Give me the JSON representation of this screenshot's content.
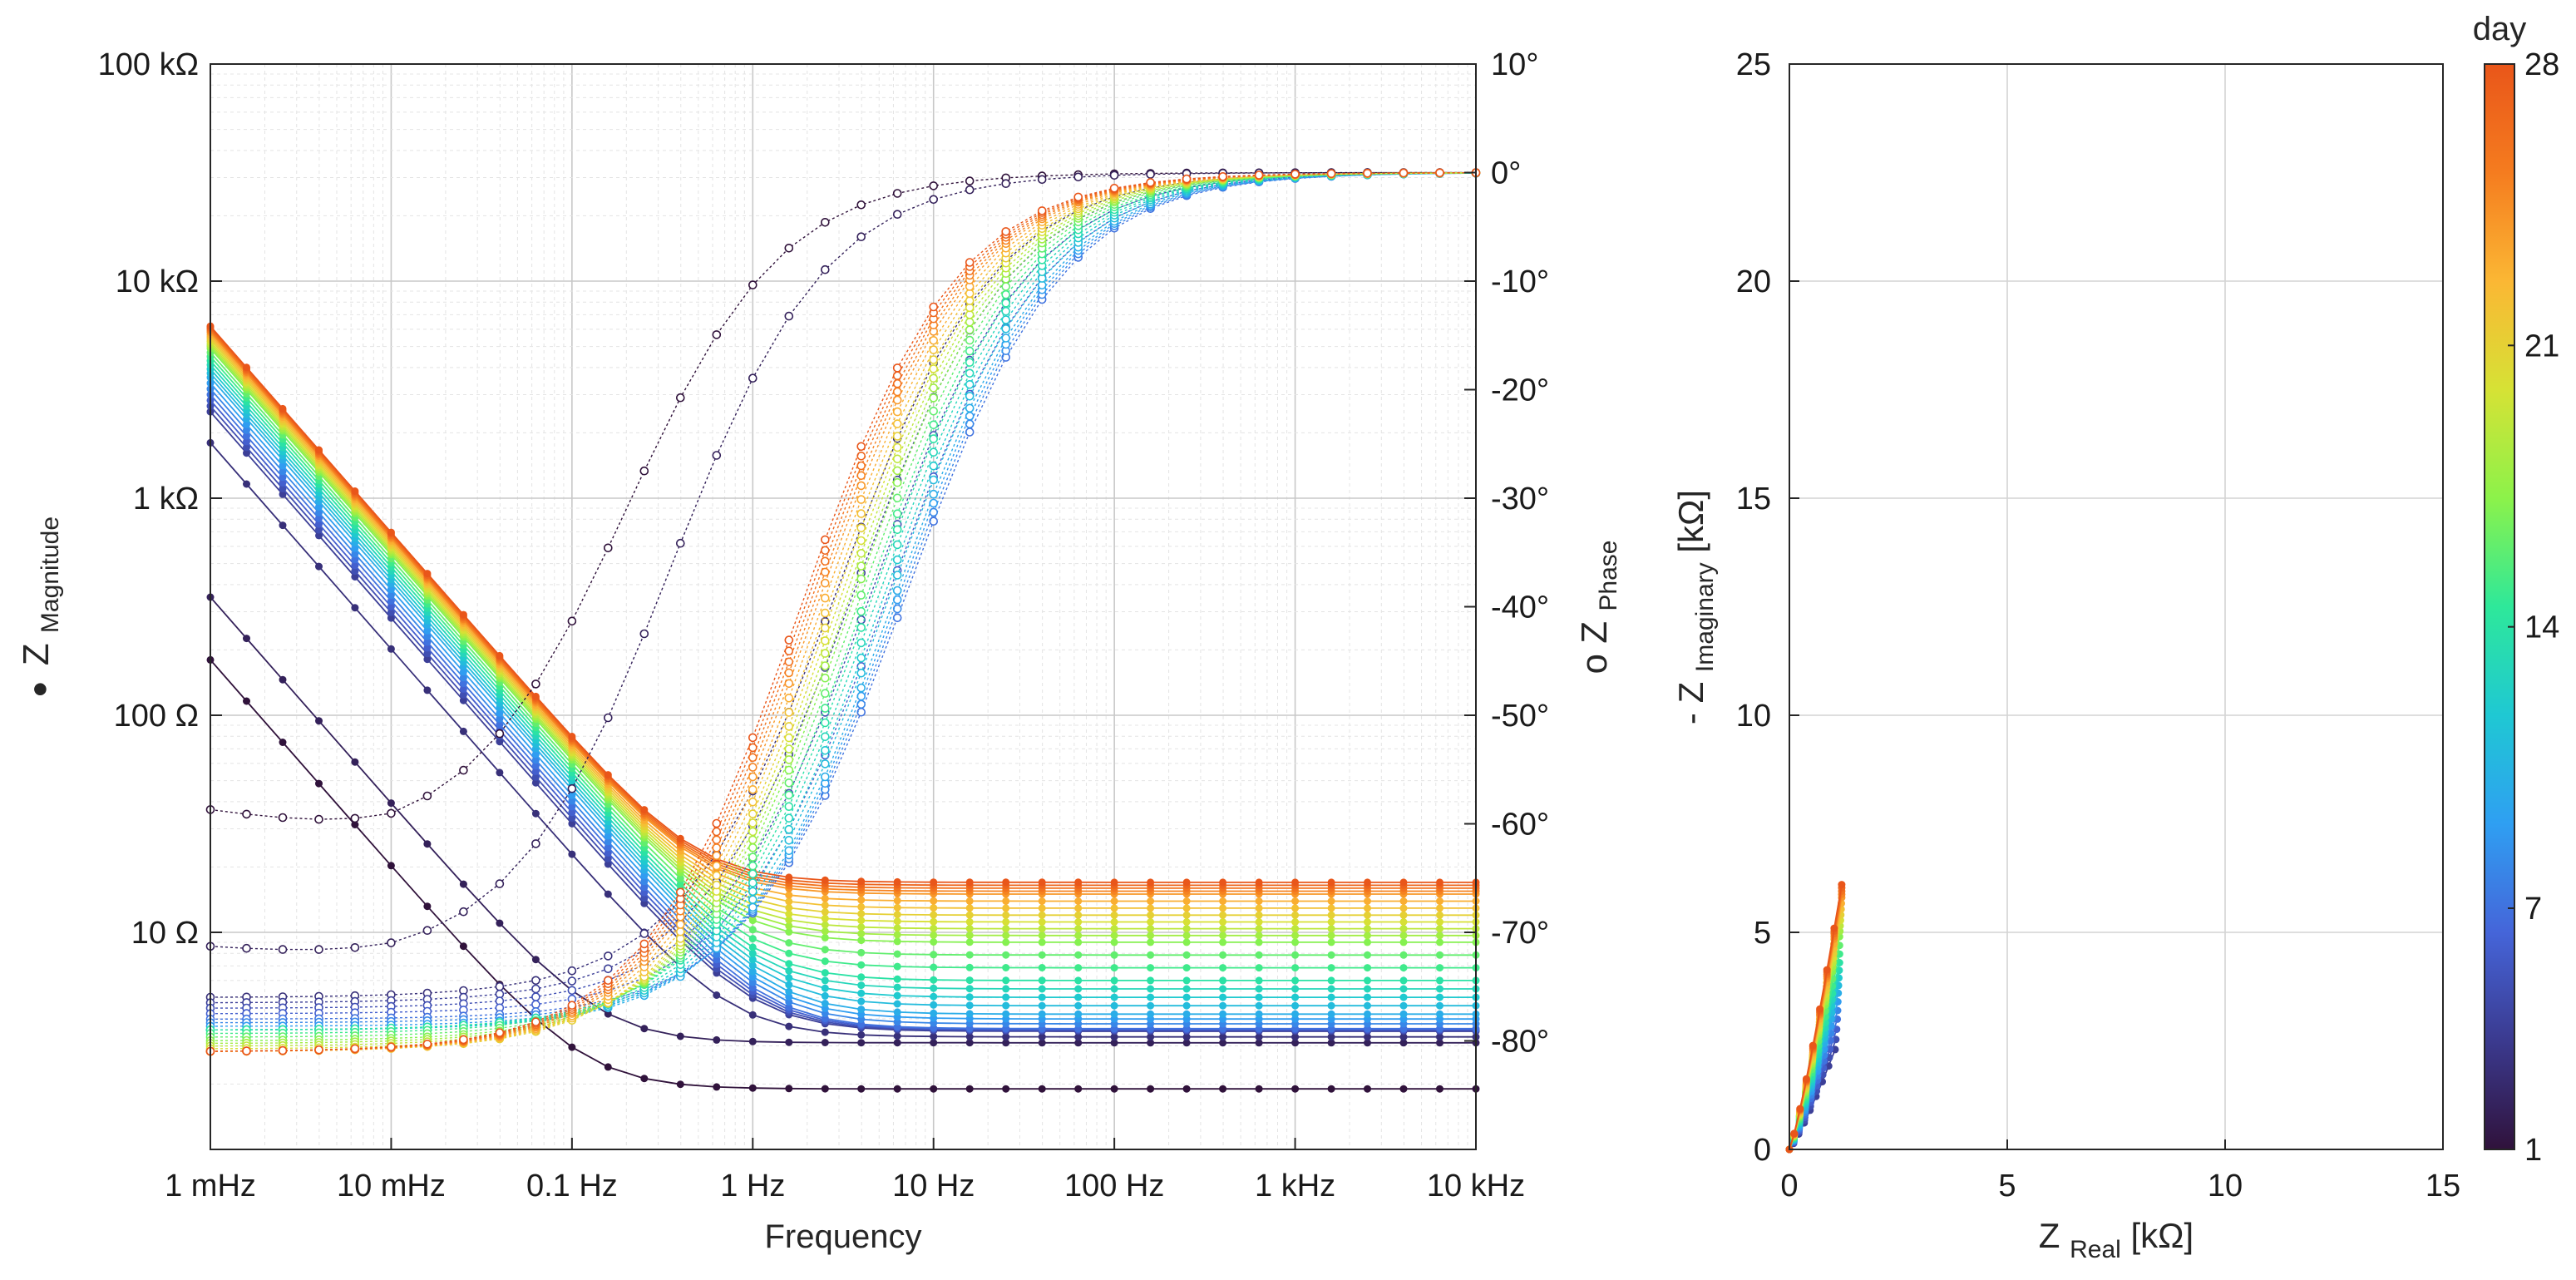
{
  "chart_data": [
    {
      "type": "line",
      "title": "",
      "xlabel": "Frequency",
      "ylabel_left": "Z",
      "ylabel_left_sub": "Magnitude",
      "ylabel_left_marker": "●",
      "ylabel_right": "o Z",
      "ylabel_right_sub": "Phase",
      "x_scale": "log",
      "xlim_hz": [
        0.001,
        10000
      ],
      "x_ticks": [
        {
          "value": 0.001,
          "label": "1 mHz"
        },
        {
          "value": 0.01,
          "label": "10 mHz"
        },
        {
          "value": 0.1,
          "label": "0.1 Hz"
        },
        {
          "value": 1,
          "label": "1 Hz"
        },
        {
          "value": 10,
          "label": "10 Hz"
        },
        {
          "value": 100,
          "label": "100 Hz"
        },
        {
          "value": 1000,
          "label": "1 kHz"
        },
        {
          "value": 10000,
          "label": "10 kHz"
        }
      ],
      "y_left_scale": "log",
      "ylim_left_ohm": [
        1,
        100000
      ],
      "y_left_ticks": [
        {
          "value": 10,
          "label": "10 Ω"
        },
        {
          "value": 100,
          "label": "100 Ω"
        },
        {
          "value": 1000,
          "label": "1 kΩ"
        },
        {
          "value": 10000,
          "label": "10 kΩ"
        },
        {
          "value": 100000,
          "label": "100 kΩ"
        }
      ],
      "ylim_right_deg": [
        -90,
        10
      ],
      "y_right_ticks": [
        {
          "value": 10,
          "label": "10°"
        },
        {
          "value": 0,
          "label": "0°"
        },
        {
          "value": -10,
          "label": "-10°"
        },
        {
          "value": -20,
          "label": "-20°"
        },
        {
          "value": -30,
          "label": "-30°"
        },
        {
          "value": -40,
          "label": "-40°"
        },
        {
          "value": -50,
          "label": "-50°"
        },
        {
          "value": -60,
          "label": "-60°"
        },
        {
          "value": -70,
          "label": "-70°"
        },
        {
          "value": -80,
          "label": "-80°"
        }
      ],
      "grid": true,
      "magnitude_series": [
        {
          "day": 1,
          "low_freq_ohm": 180,
          "high_freq_ohm": 1.9
        },
        {
          "day": 2,
          "low_freq_ohm": 350,
          "high_freq_ohm": 3.1
        },
        {
          "day": 3,
          "low_freq_ohm": 1800,
          "high_freq_ohm": 3.3
        },
        {
          "day": 4,
          "low_freq_ohm": 2500,
          "high_freq_ohm": 3.5
        },
        {
          "day": 7,
          "low_freq_ohm": 3000,
          "high_freq_ohm": 3.6
        },
        {
          "day": 10,
          "low_freq_ohm": 3600,
          "high_freq_ohm": 4.2
        },
        {
          "day": 14,
          "low_freq_ohm": 4300,
          "high_freq_ohm": 6
        },
        {
          "day": 17,
          "low_freq_ohm": 4900,
          "high_freq_ohm": 9
        },
        {
          "day": 21,
          "low_freq_ohm": 5400,
          "high_freq_ohm": 12
        },
        {
          "day": 24,
          "low_freq_ohm": 5800,
          "high_freq_ohm": 15
        },
        {
          "day": 28,
          "low_freq_ohm": 6200,
          "high_freq_ohm": 17
        }
      ],
      "phase_series": [
        {
          "day": 1,
          "f_mid_hz": 0.2,
          "low_freq_deg": -62
        },
        {
          "day": 2,
          "f_mid_hz": 0.35,
          "low_freq_deg": -73
        },
        {
          "day": 3,
          "f_mid_hz": 3,
          "low_freq_deg": -76
        },
        {
          "day": 7,
          "f_mid_hz": 7,
          "low_freq_deg": -78
        },
        {
          "day": 10,
          "f_mid_hz": 6,
          "low_freq_deg": -79
        },
        {
          "day": 14,
          "f_mid_hz": 4.5,
          "low_freq_deg": -79
        },
        {
          "day": 17,
          "f_mid_hz": 3.5,
          "low_freq_deg": -80
        },
        {
          "day": 21,
          "f_mid_hz": 2.7,
          "low_freq_deg": -81
        },
        {
          "day": 24,
          "f_mid_hz": 2.2,
          "low_freq_deg": -81
        },
        {
          "day": 28,
          "f_mid_hz": 1.8,
          "low_freq_deg": -81
        }
      ]
    },
    {
      "type": "line",
      "title": "",
      "xlabel": "Z",
      "xlabel_sub": "Real",
      "xlabel_unit": " [kΩ]",
      "ylabel": "- Z",
      "ylabel_sub": "Imaginary",
      "ylabel_unit": " [kΩ]",
      "xlim": [
        0,
        15
      ],
      "ylim": [
        0,
        25
      ],
      "x_ticks": [
        0,
        5,
        10,
        15
      ],
      "y_ticks": [
        0,
        5,
        10,
        15,
        20,
        25
      ],
      "grid": true,
      "nyquist_endpoints": [
        {
          "day": 4,
          "z_real": 1.05,
          "z_imag": 2.3
        },
        {
          "day": 7,
          "z_real": 1.1,
          "z_imag": 3.0
        },
        {
          "day": 10,
          "z_real": 1.12,
          "z_imag": 3.6
        },
        {
          "day": 14,
          "z_real": 1.15,
          "z_imag": 4.3
        },
        {
          "day": 17,
          "z_real": 1.15,
          "z_imag": 4.9
        },
        {
          "day": 21,
          "z_real": 1.18,
          "z_imag": 5.4
        },
        {
          "day": 24,
          "z_real": 1.2,
          "z_imag": 5.8
        },
        {
          "day": 28,
          "z_real": 1.2,
          "z_imag": 6.1
        }
      ]
    }
  ],
  "colorbar": {
    "label": "day",
    "range": [
      1,
      28
    ],
    "ticks": [
      1,
      7,
      14,
      21,
      28
    ],
    "colormap": [
      "#30123b",
      "#3b3a8f",
      "#4565d9",
      "#2f9ff2",
      "#1fc8d3",
      "#2ee89a",
      "#8cf24a",
      "#d6e235",
      "#fbb734",
      "#f57c1f",
      "#e9561a"
    ]
  }
}
